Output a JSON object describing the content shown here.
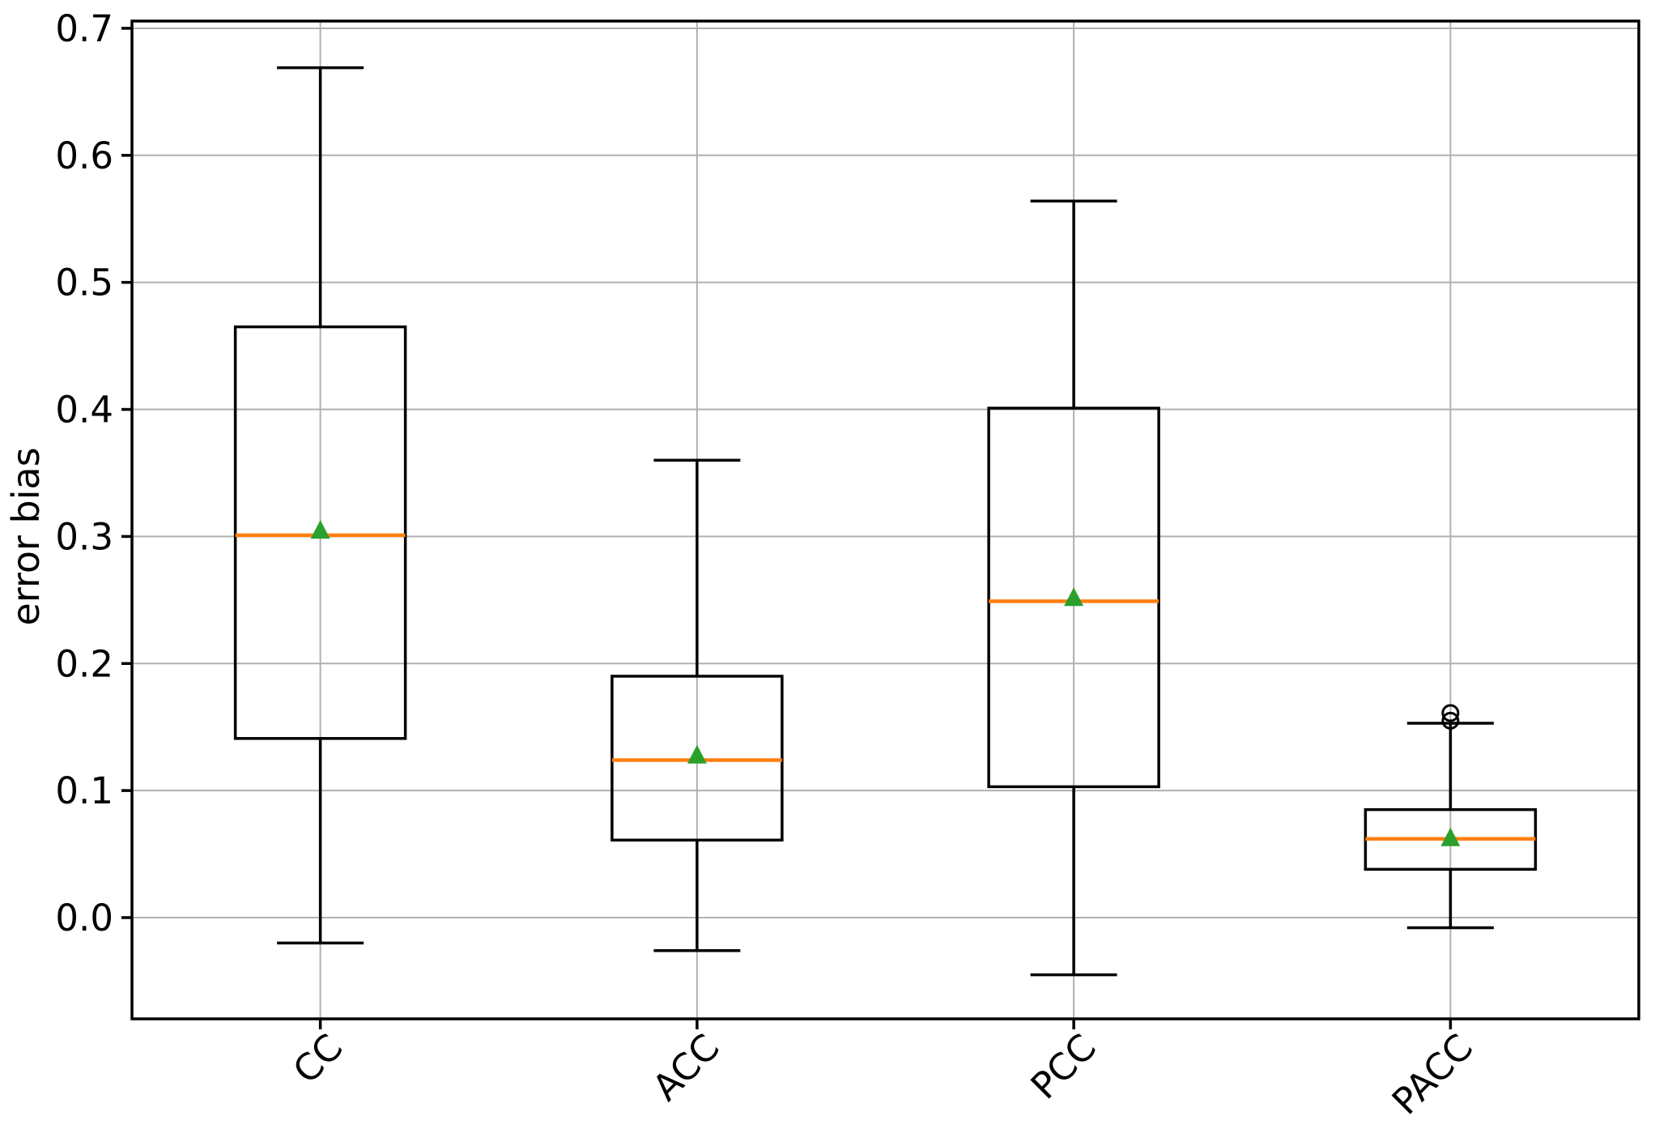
{
  "chart_data": {
    "type": "box",
    "title": "",
    "xlabel": "",
    "ylabel": "error bias",
    "categories": [
      "CC",
      "ACC",
      "PCC",
      "PACC"
    ],
    "ytick_labels": [
      "0.0",
      "0.1",
      "0.2",
      "0.3",
      "0.4",
      "0.5",
      "0.6",
      "0.7"
    ],
    "yticks": [
      0.0,
      0.1,
      0.2,
      0.3,
      0.4,
      0.5,
      0.6,
      0.7
    ],
    "ylim": [
      -0.0797,
      0.7057
    ],
    "grid": true,
    "legend": "none",
    "series": [
      {
        "label": "CC",
        "whislo": -0.02,
        "q1": 0.141,
        "med": 0.301,
        "mean": 0.304,
        "q3": 0.465,
        "whishi": 0.669,
        "fliers": []
      },
      {
        "label": "ACC",
        "whislo": -0.026,
        "q1": 0.061,
        "med": 0.124,
        "mean": 0.127,
        "q3": 0.19,
        "whishi": 0.36,
        "fliers": []
      },
      {
        "label": "PCC",
        "whislo": -0.045,
        "q1": 0.103,
        "med": 0.249,
        "mean": 0.251,
        "q3": 0.401,
        "whishi": 0.564,
        "fliers": []
      },
      {
        "label": "PACC",
        "whislo": -0.008,
        "q1": 0.038,
        "med": 0.062,
        "mean": 0.062,
        "q3": 0.085,
        "whishi": 0.153,
        "fliers": [
          0.161,
          0.155
        ]
      }
    ],
    "colors": {
      "box_line": "#000000",
      "median": "#ff7f0e",
      "mean_marker": "#2ca02c",
      "grid": "#b0b0b0",
      "spine": "#000000",
      "flier": "#000000",
      "background": "#ffffff"
    }
  }
}
